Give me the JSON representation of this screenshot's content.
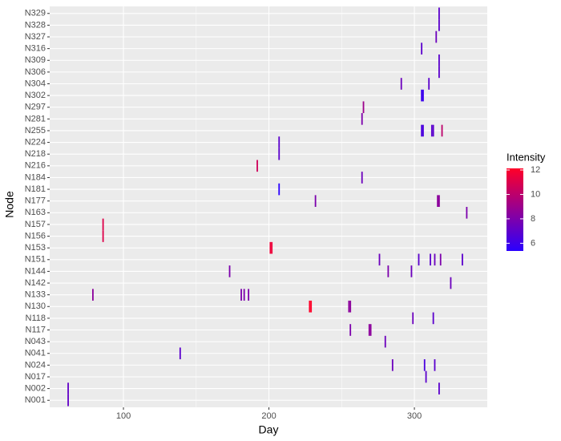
{
  "chart_data": {
    "type": "tile",
    "x_label": "Day",
    "y_label": "Node",
    "legend_title": "Intensity",
    "categories": [
      "N001",
      "N002",
      "N017",
      "N024",
      "N041",
      "N043",
      "N117",
      "N118",
      "N130",
      "N133",
      "N142",
      "N144",
      "N151",
      "N153",
      "N156",
      "N157",
      "N163",
      "N177",
      "N181",
      "N184",
      "N216",
      "N218",
      "N224",
      "N255",
      "N281",
      "N297",
      "N302",
      "N304",
      "N306",
      "N309",
      "N316",
      "N327",
      "N328",
      "N329"
    ],
    "x": [
      62,
      62,
      317,
      308,
      285,
      307,
      314,
      139,
      280,
      256,
      269,
      270,
      299,
      313,
      228,
      229,
      255,
      256,
      79,
      181,
      183,
      186,
      325,
      173,
      282,
      298,
      276,
      303,
      311,
      314,
      318,
      333,
      201,
      202,
      86,
      86,
      336,
      232,
      316,
      317,
      207,
      264,
      192,
      207,
      207,
      305,
      306,
      312,
      313,
      319,
      264,
      265,
      305,
      306,
      291,
      310,
      317,
      317,
      305,
      315,
      317,
      317
    ],
    "y": [
      "N001",
      "N002",
      "N002",
      "N017",
      "N024",
      "N024",
      "N024",
      "N041",
      "N043",
      "N117",
      "N117",
      "N117",
      "N118",
      "N118",
      "N130",
      "N130",
      "N130",
      "N130",
      "N133",
      "N133",
      "N133",
      "N133",
      "N142",
      "N144",
      "N144",
      "N144",
      "N151",
      "N151",
      "N151",
      "N151",
      "N151",
      "N151",
      "N153",
      "N153",
      "N156",
      "N157",
      "N163",
      "N177",
      "N177",
      "N177",
      "N181",
      "N184",
      "N216",
      "N218",
      "N224",
      "N255",
      "N255",
      "N255",
      "N255",
      "N255",
      "N281",
      "N297",
      "N302",
      "N302",
      "N304",
      "N304",
      "N306",
      "N309",
      "N316",
      "N327",
      "N328",
      "N329"
    ],
    "values": [
      7.2,
      7.2,
      7,
      7,
      7.5,
      6.5,
      7,
      7,
      7.5,
      8,
      8.5,
      8.5,
      7.5,
      7,
      12,
      12,
      8.5,
      8.5,
      8.5,
      8,
      8,
      8,
      7.5,
      8,
      8,
      7.5,
      7.5,
      7,
      7,
      7.5,
      8,
      7,
      11.5,
      11.5,
      11,
      11,
      8,
      8,
      8.5,
      8.5,
      5.5,
      7.5,
      10.5,
      7,
      7,
      6.5,
      6.5,
      7,
      7,
      10,
      8,
      9,
      6,
      6,
      7.5,
      7,
      7,
      7,
      7,
      7.5,
      7,
      7
    ],
    "xlim": [
      49.3,
      350.1
    ],
    "xticks": [
      100,
      200,
      300
    ],
    "legend_ticks": [
      6,
      8,
      10,
      12
    ],
    "color_low": "#2a00ff",
    "color_high": "#ff0028",
    "grid": true
  }
}
